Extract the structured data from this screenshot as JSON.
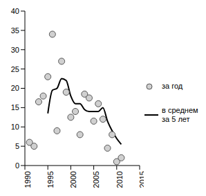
{
  "chart_data": {
    "type": "scatter",
    "xlim": [
      1990,
      2015
    ],
    "xticks": [
      1990,
      1995,
      2000,
      2005,
      2010,
      2015
    ],
    "ylim": [
      0,
      40
    ],
    "yticks": [
      0,
      5,
      10,
      15,
      20,
      25,
      30,
      35,
      40
    ],
    "grid": false,
    "legend": "right",
    "series": [
      {
        "name": "за год",
        "type": "scatter",
        "marker": "circle",
        "color": "#555555",
        "x": [
          1991,
          1992,
          1993,
          1994,
          1995,
          1996,
          1997,
          1998,
          1999,
          2000,
          2001,
          2002,
          2003,
          2004,
          2005,
          2006,
          2007,
          2008,
          2009,
          2010,
          2011
        ],
        "values": [
          6,
          5,
          16.5,
          18,
          23,
          34,
          9,
          27,
          19,
          12.5,
          14,
          8,
          18.5,
          17.5,
          11.5,
          16,
          12,
          4.5,
          8,
          1,
          2
        ]
      },
      {
        "name": "в среднем за 5 лет",
        "type": "line",
        "line_style": "solid",
        "color": "#000000",
        "x": [
          1995,
          1996,
          1997,
          1998,
          1999,
          2000,
          2001,
          2002,
          2003,
          2004,
          2005,
          2006,
          2007,
          2008,
          2009,
          2010,
          2011
        ],
        "values": [
          13.5,
          19.5,
          20,
          22.5,
          22,
          18,
          16,
          16,
          14.5,
          14,
          14,
          14,
          15,
          11.5,
          9,
          7,
          5.5
        ]
      }
    ]
  }
}
